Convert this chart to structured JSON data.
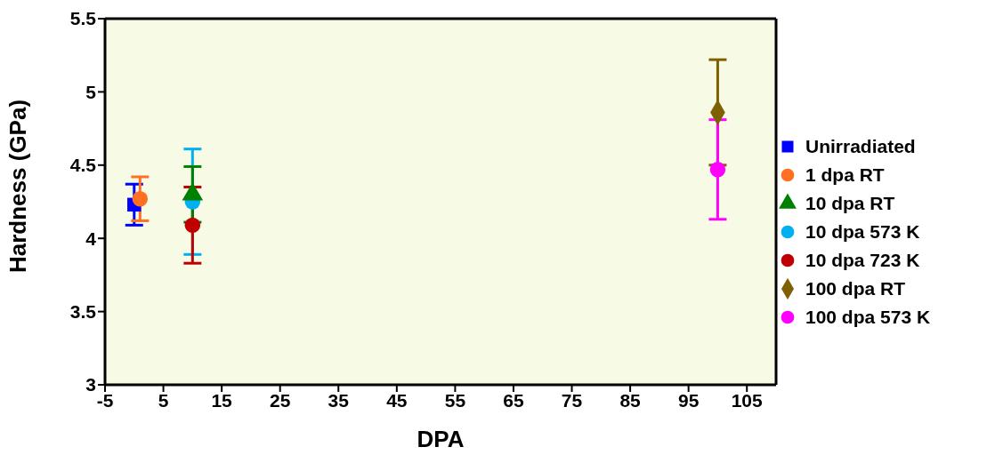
{
  "chart_data": {
    "type": "scatter",
    "xlabel": "DPA",
    "ylabel": "Hardness (GPa)",
    "xlim": [
      -5,
      110
    ],
    "xticks": [
      -5,
      5,
      15,
      25,
      35,
      45,
      55,
      65,
      75,
      85,
      95,
      105
    ],
    "ylim": [
      3,
      5.5
    ],
    "yticks": [
      3,
      3.5,
      4,
      4.5,
      5,
      5.5
    ],
    "grid": false,
    "legend": "right",
    "series": [
      {
        "name": "Unirradiated",
        "color": "#0000ff",
        "marker": "square",
        "x": [
          0
        ],
        "values": [
          4.23
        ],
        "errors": [
          0.14
        ]
      },
      {
        "name": "1 dpa RT",
        "color": "#ff7022",
        "marker": "circle",
        "x": [
          1
        ],
        "values": [
          4.27
        ],
        "errors": [
          0.15
        ]
      },
      {
        "name": "10 dpa RT",
        "color": "#008000",
        "marker": "triangle",
        "x": [
          10
        ],
        "values": [
          4.3
        ],
        "errors": [
          0.19
        ]
      },
      {
        "name": "10 dpa 573 K",
        "color": "#00b0f0",
        "marker": "circle",
        "x": [
          10
        ],
        "values": [
          4.25
        ],
        "errors": [
          0.36
        ]
      },
      {
        "name": "10 dpa 723 K",
        "color": "#c00000",
        "marker": "circle",
        "x": [
          10
        ],
        "values": [
          4.09
        ],
        "errors": [
          0.26
        ]
      },
      {
        "name": "100 dpa RT",
        "color": "#7f6000",
        "marker": "diamond",
        "x": [
          100
        ],
        "values": [
          4.86
        ],
        "errors": [
          0.36
        ]
      },
      {
        "name": "100 dpa 573 K",
        "color": "#ff00ff",
        "marker": "circle",
        "x": [
          100
        ],
        "values": [
          4.47
        ],
        "errors": [
          0.34
        ]
      }
    ]
  }
}
